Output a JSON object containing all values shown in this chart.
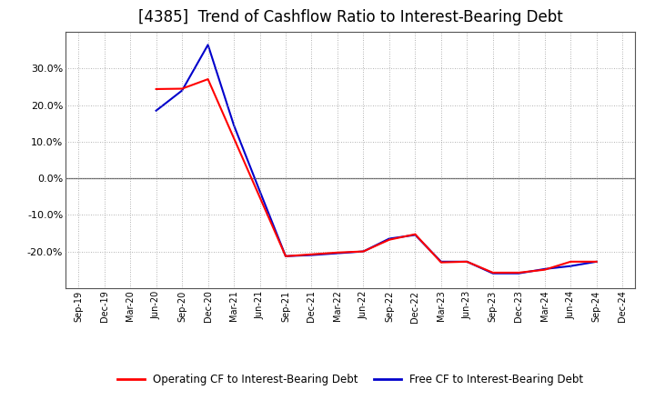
{
  "title": "[4385]  Trend of Cashflow Ratio to Interest-Bearing Debt",
  "title_fontsize": 12,
  "background_color": "#ffffff",
  "plot_bg_color": "#ffffff",
  "grid_color": "#999999",
  "x_labels": [
    "Sep-19",
    "Dec-19",
    "Mar-20",
    "Jun-20",
    "Sep-20",
    "Dec-20",
    "Mar-21",
    "Jun-21",
    "Sep-21",
    "Dec-21",
    "Mar-22",
    "Jun-22",
    "Sep-22",
    "Dec-22",
    "Mar-23",
    "Jun-23",
    "Sep-23",
    "Dec-23",
    "Mar-24",
    "Jun-24",
    "Sep-24",
    "Dec-24"
  ],
  "operating_cf": [
    null,
    null,
    null,
    0.244,
    0.245,
    0.271,
    null,
    null,
    -0.213,
    -0.208,
    -0.203,
    -0.2,
    -0.168,
    -0.153,
    -0.23,
    -0.228,
    -0.258,
    -0.258,
    -0.25,
    -0.228,
    -0.228,
    null
  ],
  "free_cf": [
    null,
    null,
    null,
    0.185,
    0.24,
    0.365,
    0.145,
    -0.035,
    -0.213,
    -0.21,
    -0.205,
    -0.2,
    -0.165,
    -0.155,
    -0.228,
    -0.228,
    -0.26,
    -0.26,
    -0.248,
    -0.24,
    -0.228,
    null
  ],
  "operating_color": "#ff0000",
  "free_color": "#0000cc",
  "line_width": 1.5,
  "legend_operating": "Operating CF to Interest-Bearing Debt",
  "legend_free": "Free CF to Interest-Bearing Debt",
  "ylim": [
    -0.3,
    0.4
  ],
  "yticks": [
    -0.2,
    -0.1,
    0.0,
    0.1,
    0.2,
    0.3
  ]
}
